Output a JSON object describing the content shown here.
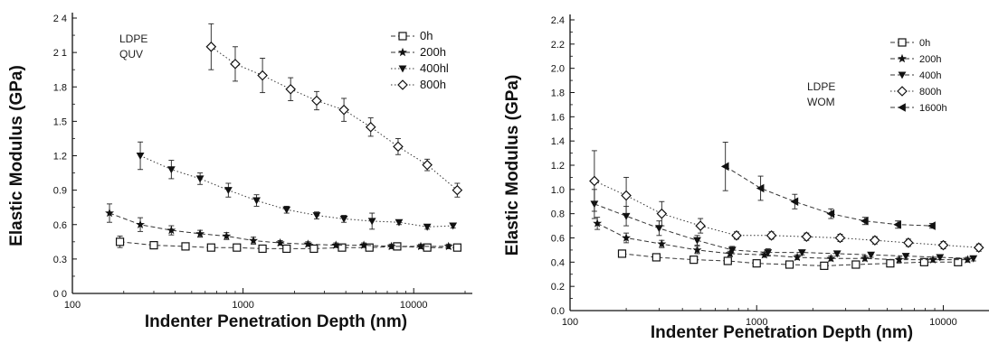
{
  "chart_data": [
    {
      "type": "scatter",
      "xlabel": "Indenter Penetration Depth (nm)",
      "ylabel": "Elastic Modulus (GPa)",
      "xscale": "log",
      "xlim": [
        100,
        20000
      ],
      "ylim": [
        0.0,
        2.4
      ],
      "xticks": [
        100,
        1000,
        10000
      ],
      "xtick_labels": [
        "100",
        "1000",
        "10000"
      ],
      "yticks": [
        0.0,
        0.3,
        0.6,
        0.9,
        1.2,
        1.5,
        1.8,
        2.1,
        2.4
      ],
      "ytick_labels": [
        "0 0",
        "0.3",
        "0.6",
        "0.9",
        "1.2",
        "1.5",
        "1.8",
        "2 1",
        "2 4"
      ],
      "annotation": [
        "LDPE",
        "QUV"
      ],
      "legend_position": "top-right",
      "series": [
        {
          "name": "0h",
          "marker": "square-open",
          "line": "dashed",
          "x": [
            190,
            300,
            460,
            650,
            920,
            1300,
            1800,
            2600,
            3800,
            5500,
            8000,
            12000,
            18000
          ],
          "y": [
            0.45,
            0.42,
            0.41,
            0.4,
            0.4,
            0.39,
            0.39,
            0.39,
            0.4,
            0.4,
            0.41,
            0.4,
            0.4
          ],
          "err": [
            0.05,
            0.02,
            0.02,
            0.02,
            0.02,
            0.02,
            0.02,
            0.02,
            0.02,
            0.02,
            0.02,
            0.02,
            0.02
          ]
        },
        {
          "name": "200h",
          "marker": "star",
          "line": "dashed",
          "x": [
            165,
            250,
            380,
            560,
            800,
            1150,
            1650,
            2400,
            3500,
            5100,
            7400,
            11000,
            16000
          ],
          "y": [
            0.7,
            0.6,
            0.55,
            0.52,
            0.5,
            0.46,
            0.44,
            0.43,
            0.42,
            0.42,
            0.41,
            0.41,
            0.41
          ],
          "err": [
            0.08,
            0.06,
            0.04,
            0.03,
            0.03,
            0.03,
            0.02,
            0.02,
            0.02,
            0.02,
            0.02,
            0.02,
            0.02
          ]
        },
        {
          "name": "400hl",
          "marker": "triangle-down",
          "line": "dotted",
          "x": [
            250,
            380,
            560,
            820,
            1200,
            1800,
            2700,
            3900,
            5700,
            8200,
            12000,
            17000
          ],
          "y": [
            1.2,
            1.08,
            1.0,
            0.9,
            0.81,
            0.73,
            0.68,
            0.65,
            0.63,
            0.62,
            0.58,
            0.59
          ],
          "err": [
            0.12,
            0.08,
            0.05,
            0.06,
            0.05,
            0.03,
            0.03,
            0.03,
            0.07,
            0.02,
            0.02,
            0.02
          ]
        },
        {
          "name": "800h",
          "marker": "diamond-open",
          "line": "dotted",
          "x": [
            650,
            900,
            1300,
            1900,
            2700,
            3900,
            5600,
            8100,
            12000,
            18000
          ],
          "y": [
            2.15,
            2.0,
            1.9,
            1.78,
            1.68,
            1.6,
            1.45,
            1.28,
            1.12,
            0.9
          ],
          "err": [
            0.2,
            0.15,
            0.15,
            0.1,
            0.08,
            0.1,
            0.08,
            0.07,
            0.05,
            0.06
          ]
        }
      ]
    },
    {
      "type": "scatter",
      "xlabel": "Indenter Penetration Depth (nm)",
      "ylabel": "Elastic Modulus (GPa)",
      "xscale": "log",
      "xlim": [
        100,
        17000
      ],
      "ylim": [
        0.0,
        2.4
      ],
      "xticks": [
        100,
        1000,
        10000
      ],
      "xtick_labels": [
        "100",
        "1000",
        "10000"
      ],
      "yticks": [
        0.0,
        0.2,
        0.4,
        0.6,
        0.8,
        1.0,
        1.2,
        1.4,
        1.6,
        1.8,
        2.0,
        2.2,
        2.4
      ],
      "ytick_labels": [
        "0.0",
        "0.2",
        "0.4",
        "0.6",
        "0.8",
        "1.0",
        "1.2",
        "1.4",
        "1.6",
        "1.8",
        "2.0",
        "2.2",
        "2.4"
      ],
      "annotation": [
        "LDPE",
        "WOM"
      ],
      "legend_position": "top-right",
      "series": [
        {
          "name": "0h",
          "marker": "square-open",
          "line": "dashed",
          "x": [
            190,
            290,
            460,
            700,
            1000,
            1500,
            2300,
            3400,
            5200,
            7900,
            12000
          ],
          "y": [
            0.47,
            0.44,
            0.42,
            0.41,
            0.39,
            0.38,
            0.37,
            0.38,
            0.39,
            0.4,
            0.4
          ],
          "err": [
            0.03,
            0.02,
            0.02,
            0.02,
            0.02,
            0.02,
            0.02,
            0.02,
            0.02,
            0.02,
            0.02
          ]
        },
        {
          "name": "200h",
          "marker": "star",
          "line": "dashed",
          "x": [
            140,
            200,
            310,
            480,
            720,
            1100,
            1650,
            2500,
            3800,
            5800,
            8800,
            13500
          ],
          "y": [
            0.72,
            0.6,
            0.55,
            0.5,
            0.47,
            0.46,
            0.44,
            0.43,
            0.43,
            0.42,
            0.42,
            0.42
          ],
          "err": [
            0.05,
            0.04,
            0.03,
            0.03,
            0.02,
            0.02,
            0.02,
            0.02,
            0.02,
            0.02,
            0.02,
            0.02
          ]
        },
        {
          "name": "400h",
          "marker": "triangle-down",
          "line": "dashed",
          "x": [
            135,
            200,
            300,
            480,
            740,
            1150,
            1750,
            2700,
            4100,
            6300,
            9600,
            14500
          ],
          "y": [
            0.88,
            0.78,
            0.68,
            0.58,
            0.5,
            0.48,
            0.48,
            0.47,
            0.46,
            0.45,
            0.44,
            0.43
          ],
          "err": [
            0.12,
            0.08,
            0.06,
            0.04,
            0.03,
            0.03,
            0.02,
            0.02,
            0.02,
            0.02,
            0.02,
            0.02
          ]
        },
        {
          "name": "800h",
          "marker": "diamond-open",
          "line": "dotted",
          "x": [
            135,
            200,
            310,
            500,
            780,
            1200,
            1850,
            2800,
            4300,
            6500,
            10000,
            15500
          ],
          "y": [
            1.07,
            0.95,
            0.8,
            0.7,
            0.62,
            0.62,
            0.61,
            0.6,
            0.58,
            0.56,
            0.54,
            0.52
          ],
          "err": [
            0.25,
            0.15,
            0.1,
            0.06,
            0.03,
            0.03,
            0.03,
            0.03,
            0.03,
            0.03,
            0.03,
            0.03
          ]
        },
        {
          "name": "1600h",
          "marker": "triangle-left",
          "line": "dashed",
          "x": [
            680,
            1050,
            1600,
            2500,
            3800,
            5700,
            8700
          ],
          "y": [
            1.19,
            1.01,
            0.9,
            0.8,
            0.74,
            0.71,
            0.7
          ],
          "err": [
            0.2,
            0.1,
            0.06,
            0.04,
            0.03,
            0.03,
            0.02
          ]
        }
      ]
    }
  ]
}
